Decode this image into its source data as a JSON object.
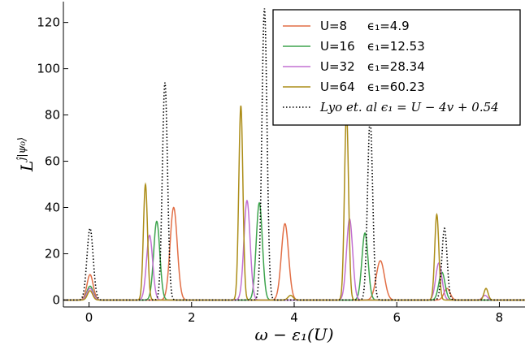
{
  "chart_data": {
    "type": "line",
    "xlabel": "ω − ε₁(U)",
    "ylabel": "L^{ĵ|ψ₀⟩}",
    "xlim": [
      -0.5,
      8.5
    ],
    "ylim": [
      -3,
      129
    ],
    "xticks": [
      0,
      2,
      4,
      6,
      8
    ],
    "yticks": [
      0,
      20,
      40,
      60,
      80,
      100,
      120
    ],
    "grid": false,
    "legend_position": "top-right",
    "series": [
      {
        "name": "U=8",
        "legend_extra": "ϵ₁=4.9",
        "color": "#e26f46",
        "style": "solid",
        "peaks": [
          [
            0.02,
            11,
            0.06
          ],
          [
            1.65,
            40,
            0.07
          ],
          [
            3.82,
            33,
            0.07
          ],
          [
            5.68,
            17,
            0.08
          ],
          [
            6.98,
            5,
            0.06
          ]
        ]
      },
      {
        "name": "U=16",
        "legend_extra": "ϵ₁=12.53",
        "color": "#3da44d",
        "style": "solid",
        "peaks": [
          [
            0.02,
            6,
            0.06
          ],
          [
            1.32,
            34,
            0.06
          ],
          [
            3.32,
            42,
            0.06
          ],
          [
            5.38,
            29,
            0.06
          ],
          [
            6.88,
            12,
            0.06
          ]
        ]
      },
      {
        "name": "U=32",
        "legend_extra": "ϵ₁=28.34",
        "color": "#c271d2",
        "style": "solid",
        "peaks": [
          [
            0.02,
            5,
            0.06
          ],
          [
            1.18,
            28,
            0.06
          ],
          [
            3.08,
            43,
            0.06
          ],
          [
            5.08,
            35,
            0.06
          ],
          [
            6.82,
            16,
            0.06
          ],
          [
            7.72,
            2,
            0.05
          ]
        ]
      },
      {
        "name": "U=64",
        "legend_extra": "ϵ₁=60.23",
        "color": "#ac8d18",
        "style": "solid",
        "peaks": [
          [
            0.02,
            4,
            0.05
          ],
          [
            1.1,
            50,
            0.04
          ],
          [
            2.96,
            84,
            0.04
          ],
          [
            3.93,
            2,
            0.05
          ],
          [
            5.02,
            81,
            0.04
          ],
          [
            6.78,
            37,
            0.04
          ],
          [
            7.74,
            5,
            0.04
          ]
        ]
      },
      {
        "name": "Lyo et. al ϵ₁ = U − 4v + 0.54",
        "color": "#000000",
        "style": "dotted",
        "peaks": [
          [
            0.02,
            31,
            0.06
          ],
          [
            1.48,
            94,
            0.05
          ],
          [
            3.42,
            126,
            0.05
          ],
          [
            5.48,
            78,
            0.05
          ],
          [
            6.93,
            31,
            0.05
          ]
        ]
      }
    ]
  }
}
